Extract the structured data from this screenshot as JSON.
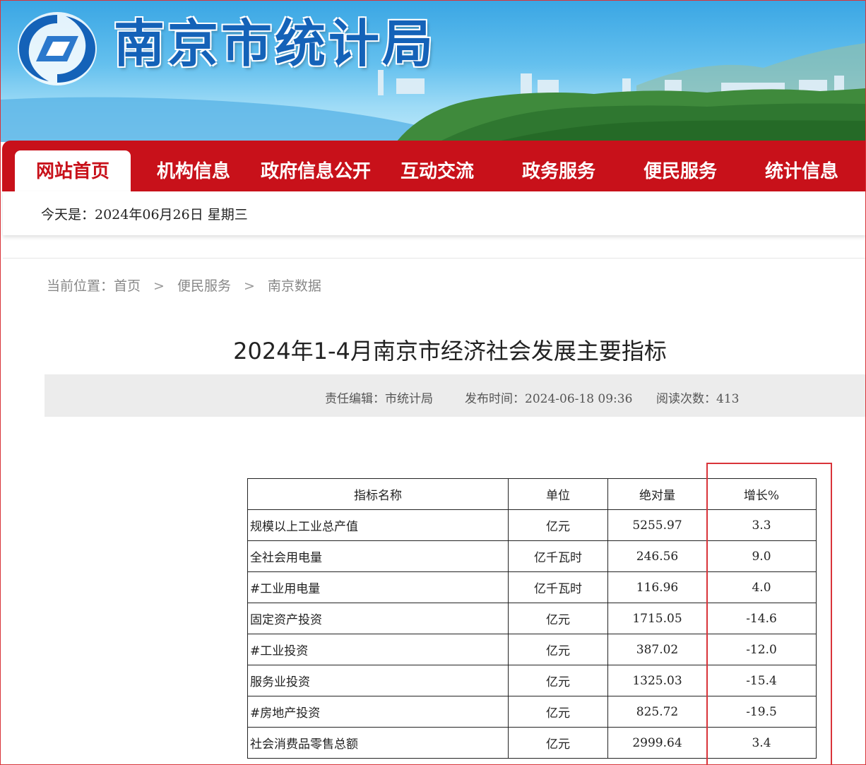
{
  "site": {
    "name": "南京市统计局",
    "colors": {
      "brand_blue": "#1462b8",
      "nav_red": "#c8111a",
      "highlight": "#d9343a"
    }
  },
  "nav": {
    "items": [
      {
        "label": "网站首页",
        "active": true
      },
      {
        "label": "机构信息",
        "active": false
      },
      {
        "label": "政府信息公开",
        "active": false
      },
      {
        "label": "互动交流",
        "active": false
      },
      {
        "label": "政务服务",
        "active": false
      },
      {
        "label": "便民服务",
        "active": false
      },
      {
        "label": "统计信息",
        "active": false
      }
    ]
  },
  "datebar": {
    "text": "今天是：2024年06月26日  星期三"
  },
  "breadcrumb": {
    "prefix": "当前位置：",
    "items": [
      "首页",
      "便民服务",
      "南京数据"
    ],
    "separator": ">"
  },
  "article": {
    "title": "2024年1-4月南京市经济社会发展主要指标",
    "editor": "责任编辑：市统计局",
    "published": "发布时间：2024-06-18 09:36",
    "views": "阅读次数：413"
  },
  "table": {
    "headers": [
      "指标名称",
      "单位",
      "绝对量",
      "增长%"
    ],
    "rows": [
      {
        "name": "规模以上工业总产值",
        "unit": "亿元",
        "value": "5255.97",
        "growth": "3.3"
      },
      {
        "name": "全社会用电量",
        "unit": "亿千瓦时",
        "value": "246.56",
        "growth": "9.0"
      },
      {
        "name": "#工业用电量",
        "unit": "亿千瓦时",
        "value": "116.96",
        "growth": "4.0"
      },
      {
        "name": "固定资产投资",
        "unit": "亿元",
        "value": "1715.05",
        "growth": "-14.6"
      },
      {
        "name": "#工业投资",
        "unit": "亿元",
        "value": "387.02",
        "growth": "-12.0"
      },
      {
        "name": "服务业投资",
        "unit": "亿元",
        "value": "1325.03",
        "growth": "-15.4"
      },
      {
        "name": "#房地产投资",
        "unit": "亿元",
        "value": "825.72",
        "growth": "-19.5"
      },
      {
        "name": "社会消费品零售总额",
        "unit": "亿元",
        "value": "2999.64",
        "growth": "3.4"
      }
    ]
  }
}
